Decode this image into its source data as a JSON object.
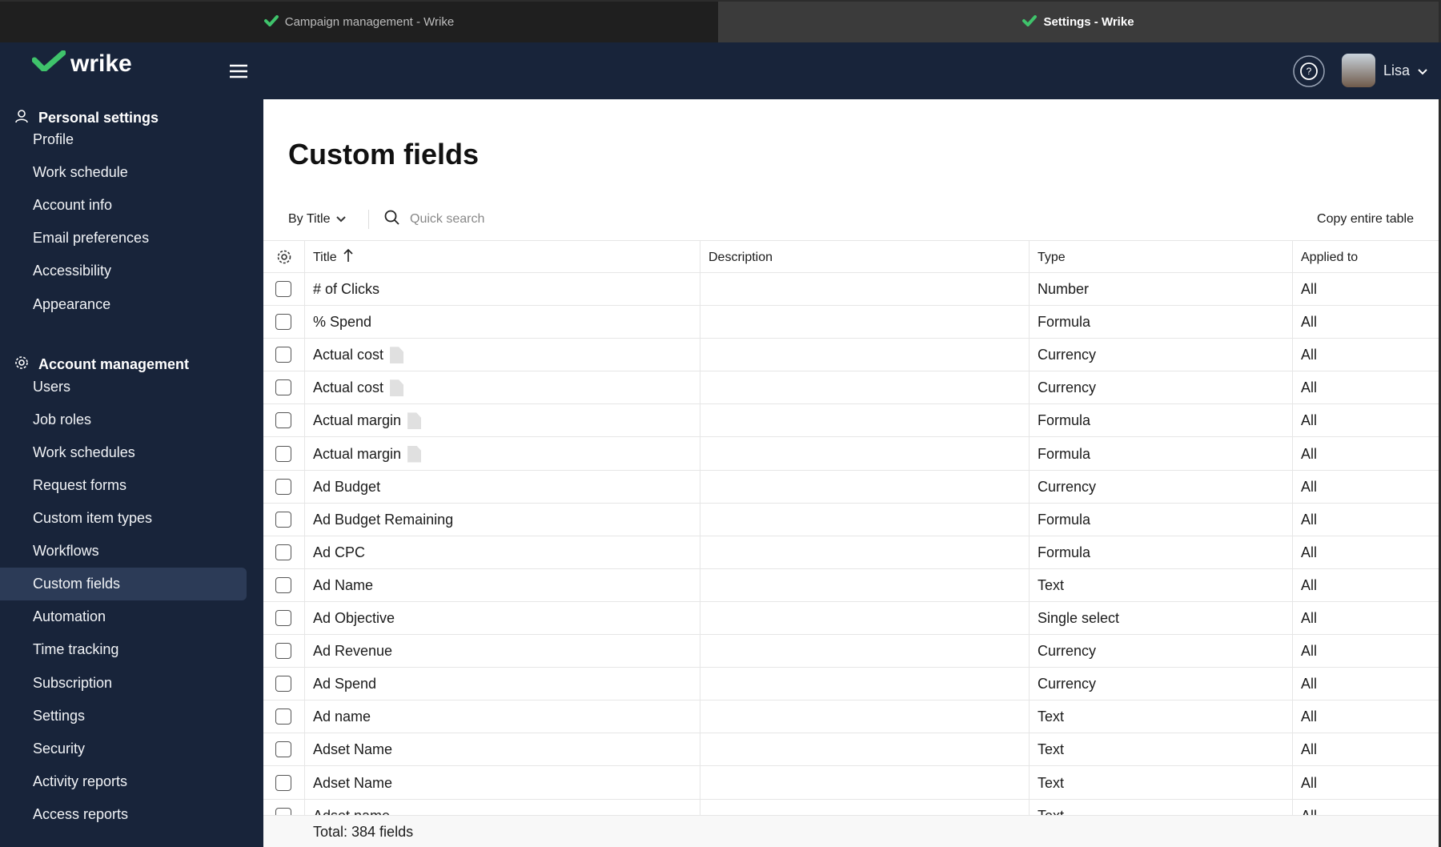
{
  "tabs": [
    "Campaign management - Wrike",
    "Settings - Wrike"
  ],
  "header": {
    "logo": "wrike",
    "user": "Lisa"
  },
  "sidebar": {
    "sections": [
      {
        "title": "Personal settings",
        "items": [
          {
            "label": "Profile"
          },
          {
            "label": "Work schedule"
          },
          {
            "label": "Account info"
          },
          {
            "label": "Email preferences"
          },
          {
            "label": "Accessibility"
          },
          {
            "label": "Appearance"
          }
        ]
      },
      {
        "title": "Account management",
        "items": [
          {
            "label": "Users"
          },
          {
            "label": "Job roles"
          },
          {
            "label": "Work schedules"
          },
          {
            "label": "Request forms"
          },
          {
            "label": "Custom item types"
          },
          {
            "label": "Workflows"
          },
          {
            "label": "Custom fields",
            "active": true
          },
          {
            "label": "Automation"
          },
          {
            "label": "Time tracking"
          },
          {
            "label": "Subscription"
          },
          {
            "label": "Settings"
          },
          {
            "label": "Security"
          },
          {
            "label": "Activity reports"
          },
          {
            "label": "Access reports"
          }
        ]
      }
    ]
  },
  "page": {
    "title": "Custom fields",
    "sort": "By Title",
    "search_placeholder": "Quick search",
    "copy": "Copy entire table"
  },
  "table": {
    "columns": [
      "Title",
      "Description",
      "Type",
      "Applied to"
    ],
    "rows": [
      {
        "title": "# of Clicks",
        "type": "Number",
        "applied_to": "All"
      },
      {
        "title": "% Spend",
        "type": "Formula",
        "applied_to": "All"
      },
      {
        "title": "Actual cost",
        "type": "Currency",
        "applied_to": "All",
        "icon": true
      },
      {
        "title": "Actual cost",
        "type": "Currency",
        "applied_to": "All",
        "icon": true
      },
      {
        "title": "Actual margin",
        "type": "Formula",
        "applied_to": "All",
        "icon": true
      },
      {
        "title": "Actual margin",
        "type": "Formula",
        "applied_to": "All",
        "icon": true
      },
      {
        "title": "Ad Budget",
        "type": "Currency",
        "applied_to": "All"
      },
      {
        "title": "Ad Budget Remaining",
        "type": "Formula",
        "applied_to": "All"
      },
      {
        "title": "Ad CPC",
        "type": "Formula",
        "applied_to": "All"
      },
      {
        "title": "Ad Name",
        "type": "Text",
        "applied_to": "All"
      },
      {
        "title": "Ad Objective",
        "type": "Single select",
        "applied_to": "All"
      },
      {
        "title": "Ad Revenue",
        "type": "Currency",
        "applied_to": "All"
      },
      {
        "title": "Ad Spend",
        "type": "Currency",
        "applied_to": "All"
      },
      {
        "title": "Ad name",
        "type": "Text",
        "applied_to": "All"
      },
      {
        "title": "Adset Name",
        "type": "Text",
        "applied_to": "All"
      },
      {
        "title": "Adset Name",
        "type": "Text",
        "applied_to": "All"
      },
      {
        "title": "Adset name",
        "type": "Text",
        "applied_to": "All"
      }
    ],
    "footer": "Total: 384 fields"
  }
}
